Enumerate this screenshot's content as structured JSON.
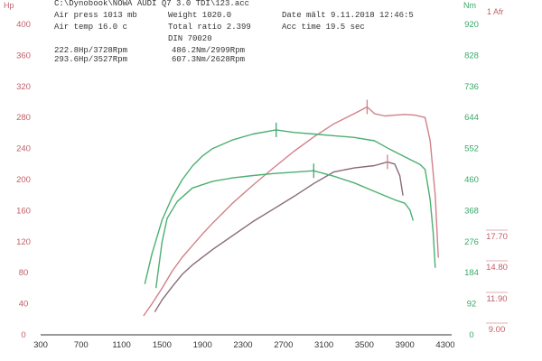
{
  "header": {
    "top_line": "C:\\Dynobook\\NOWA AUDI Q7 3.0 TDI\\123.acc",
    "air_press": "Air press  1013 mb",
    "air_temp": "Air temp  16.0 c",
    "weight": "Weight  1020.0",
    "total_ratio": "Total ratio 2.399",
    "din": "DIN 70020",
    "date": "Date mält 9.11.2018 12:46:5",
    "acc_time": "Acc time  19.5 sec",
    "power_peak_1": "222.8Hp/3728Rpm",
    "power_peak_2": "293.6Hp/3527Rpm",
    "torque_peak_1": "486.2Nm/2999Rpm",
    "torque_peak_2": "607.3Nm/2628Rpm"
  },
  "colors": {
    "hp_axis": "#c0606a",
    "nm_axis": "#3aa86a",
    "afr_axis": "#c0606a",
    "power_run_2": "#d2808a",
    "power_run_1": "#8a6a78",
    "torque_run_2": "#4caf72",
    "torque_run_1": "#4caf72",
    "marker": "#3aa86a",
    "marker_power": "#d2808a",
    "baseline": "#333333"
  },
  "chart_data": {
    "type": "line",
    "x_axis": {
      "ticks": [
        "300",
        "700",
        "1100",
        "1500",
        "1900",
        "2300",
        "2700",
        "3100",
        "3500",
        "3900",
        "4300"
      ],
      "range": [
        300,
        4300
      ]
    },
    "y_left": {
      "title": "Hp",
      "ticks": [
        "0",
        "40",
        "80",
        "120",
        "160",
        "200",
        "240",
        "280",
        "320",
        "360",
        "400"
      ],
      "range": [
        0,
        400
      ]
    },
    "y_right": {
      "title": "Nm",
      "ticks": [
        "0",
        "92",
        "184",
        "276",
        "368",
        "460",
        "552",
        "644",
        "736",
        "828",
        "920"
      ],
      "range": [
        0,
        920
      ]
    },
    "y_afr": {
      "title": "1 Afr",
      "ticks": [
        "9.00",
        "11.90",
        "14.80",
        "17.70"
      ]
    },
    "grid": false,
    "series": [
      {
        "axis": "left",
        "color_key": "power_run_2",
        "points": [
          [
            1320,
            25
          ],
          [
            1400,
            40
          ],
          [
            1500,
            60
          ],
          [
            1600,
            82
          ],
          [
            1700,
            100
          ],
          [
            1800,
            115
          ],
          [
            1900,
            130
          ],
          [
            2000,
            144
          ],
          [
            2200,
            170
          ],
          [
            2400,
            193
          ],
          [
            2600,
            215
          ],
          [
            2800,
            236
          ],
          [
            3000,
            255
          ],
          [
            3200,
            272
          ],
          [
            3400,
            285
          ],
          [
            3527,
            293.6
          ],
          [
            3600,
            285
          ],
          [
            3700,
            282
          ],
          [
            3800,
            283
          ],
          [
            3900,
            284
          ],
          [
            4000,
            283
          ],
          [
            4100,
            280
          ],
          [
            4150,
            250
          ],
          [
            4200,
            180
          ],
          [
            4230,
            100
          ]
        ]
      },
      {
        "axis": "left",
        "color_key": "power_run_1",
        "points": [
          [
            1430,
            30
          ],
          [
            1500,
            45
          ],
          [
            1600,
            62
          ],
          [
            1700,
            78
          ],
          [
            1800,
            90
          ],
          [
            2000,
            110
          ],
          [
            2200,
            128
          ],
          [
            2400,
            146
          ],
          [
            2600,
            162
          ],
          [
            2800,
            178
          ],
          [
            3000,
            195
          ],
          [
            3200,
            210
          ],
          [
            3400,
            215
          ],
          [
            3600,
            218
          ],
          [
            3728,
            222.8
          ],
          [
            3800,
            220
          ],
          [
            3850,
            205
          ],
          [
            3880,
            180
          ]
        ]
      },
      {
        "axis": "right",
        "color_key": "torque_run_2",
        "points": [
          [
            1330,
            152
          ],
          [
            1400,
            240
          ],
          [
            1500,
            340
          ],
          [
            1600,
            408
          ],
          [
            1700,
            460
          ],
          [
            1800,
            500
          ],
          [
            1900,
            530
          ],
          [
            2000,
            552
          ],
          [
            2200,
            578
          ],
          [
            2400,
            595
          ],
          [
            2628,
            607.3
          ],
          [
            2800,
            600
          ],
          [
            3000,
            595
          ],
          [
            3200,
            590
          ],
          [
            3400,
            585
          ],
          [
            3600,
            575
          ],
          [
            3750,
            550
          ],
          [
            3850,
            535
          ],
          [
            3950,
            520
          ],
          [
            4050,
            505
          ],
          [
            4100,
            490
          ],
          [
            4150,
            400
          ],
          [
            4180,
            300
          ],
          [
            4200,
            200
          ]
        ]
      },
      {
        "axis": "right",
        "color_key": "torque_run_1",
        "points": [
          [
            1440,
            140
          ],
          [
            1500,
            275
          ],
          [
            1550,
            345
          ],
          [
            1650,
            395
          ],
          [
            1800,
            435
          ],
          [
            2000,
            455
          ],
          [
            2200,
            465
          ],
          [
            2400,
            472
          ],
          [
            2600,
            478
          ],
          [
            2800,
            482
          ],
          [
            2999,
            486.2
          ],
          [
            3200,
            470
          ],
          [
            3400,
            450
          ],
          [
            3600,
            425
          ],
          [
            3800,
            400
          ],
          [
            3900,
            390
          ],
          [
            3950,
            370
          ],
          [
            3980,
            340
          ]
        ]
      }
    ],
    "markers": [
      {
        "axis": "right",
        "x": 2628,
        "y": 607.3,
        "color_key": "marker"
      },
      {
        "axis": "right",
        "x": 2999,
        "y": 486.2,
        "color_key": "marker"
      },
      {
        "axis": "left",
        "x": 3527,
        "y": 293.6,
        "color_key": "marker_power"
      },
      {
        "axis": "left",
        "x": 3728,
        "y": 222.8,
        "color_key": "marker_power"
      }
    ]
  }
}
